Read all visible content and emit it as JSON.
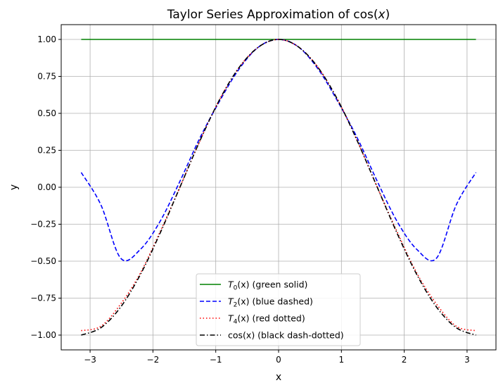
{
  "chart_data": {
    "type": "line",
    "title": "Taylor Series Approximation of cos(x)",
    "title_parts": {
      "main": "Taylor Series Approximation of cos(",
      "var": "x",
      "close": ")"
    },
    "xlabel": "x",
    "ylabel": "y",
    "xlim": [
      -3.46,
      3.46
    ],
    "ylim": [
      -1.1,
      1.1
    ],
    "grid": true,
    "legend_placement": "lower center",
    "x_ticks": [
      {
        "value": -3,
        "label": "−3"
      },
      {
        "value": -2,
        "label": "−2"
      },
      {
        "value": -1,
        "label": "−1"
      },
      {
        "value": 0,
        "label": "0"
      },
      {
        "value": 1,
        "label": "1"
      },
      {
        "value": 2,
        "label": "2"
      },
      {
        "value": 3,
        "label": "3"
      }
    ],
    "y_ticks": [
      {
        "value": 1.0,
        "label": "1.00"
      },
      {
        "value": 0.75,
        "label": "0.75"
      },
      {
        "value": 0.5,
        "label": "0.50"
      },
      {
        "value": 0.25,
        "label": "0.25"
      },
      {
        "value": 0.0,
        "label": "0.00"
      },
      {
        "value": -0.25,
        "label": "−0.25"
      },
      {
        "value": -0.5,
        "label": "−0.50"
      },
      {
        "value": -0.75,
        "label": "−0.75"
      },
      {
        "value": -1.0,
        "label": "−1.00"
      }
    ],
    "x": [
      -3.1416,
      -2.8274,
      -2.5133,
      -2.1991,
      -1.885,
      -1.5708,
      -1.2566,
      -0.9425,
      -0.6283,
      -0.3142,
      0,
      0.3142,
      0.6283,
      0.9425,
      1.2566,
      1.5708,
      1.885,
      2.1991,
      2.5133,
      2.8274,
      3.1416
    ],
    "series": [
      {
        "name": "T0(x) (green solid)",
        "legend": {
          "sym": "T",
          "sub": "0",
          "rest": "(x)",
          "desc": " (green solid)"
        },
        "color": "#008000",
        "dash": "",
        "values": [
          1,
          1,
          1,
          1,
          1,
          1,
          1,
          1,
          1,
          1,
          1,
          1,
          1,
          1,
          1,
          1,
          1,
          1,
          1,
          1,
          1
        ]
      },
      {
        "name": "T2(x) (blue dashed)",
        "legend": {
          "sym": "T",
          "sub": "2",
          "rest": "(x)",
          "desc": " (blue dashed)"
        },
        "color": "#0000ff",
        "dash": "6,3",
        "values": [
          0.1,
          -0.12,
          -0.48,
          -0.42,
          -0.23,
          0.04,
          0.33,
          0.58,
          0.8,
          0.95,
          1.0,
          0.95,
          0.8,
          0.58,
          0.33,
          0.04,
          -0.23,
          -0.42,
          -0.48,
          -0.12,
          0.1
        ]
      },
      {
        "name": "T4(x) (red dotted)",
        "legend": {
          "sym": "T",
          "sub": "4",
          "rest": "(x)",
          "desc": " (red dotted)"
        },
        "color": "#ff0000",
        "dash": "1.5,3",
        "values": [
          -0.97,
          -0.94,
          -0.79,
          -0.58,
          -0.3,
          0.0,
          0.31,
          0.59,
          0.81,
          0.95,
          1.0,
          0.95,
          0.81,
          0.59,
          0.31,
          0.0,
          -0.3,
          -0.58,
          -0.79,
          -0.94,
          -0.97
        ]
      },
      {
        "name": "cos(x) (black dash-dotted)",
        "legend": {
          "sym": "cos",
          "sub": "",
          "rest": "(x)",
          "desc": " (black dash-dotted)"
        },
        "color": "#000000",
        "dash": "7,3,1.5,3",
        "values": [
          -1.0,
          -0.95,
          -0.81,
          -0.59,
          -0.31,
          0.0,
          0.31,
          0.59,
          0.81,
          0.95,
          1.0,
          0.95,
          0.81,
          0.59,
          0.31,
          0.0,
          -0.31,
          -0.59,
          -0.81,
          -0.95,
          -1.0
        ]
      }
    ]
  }
}
